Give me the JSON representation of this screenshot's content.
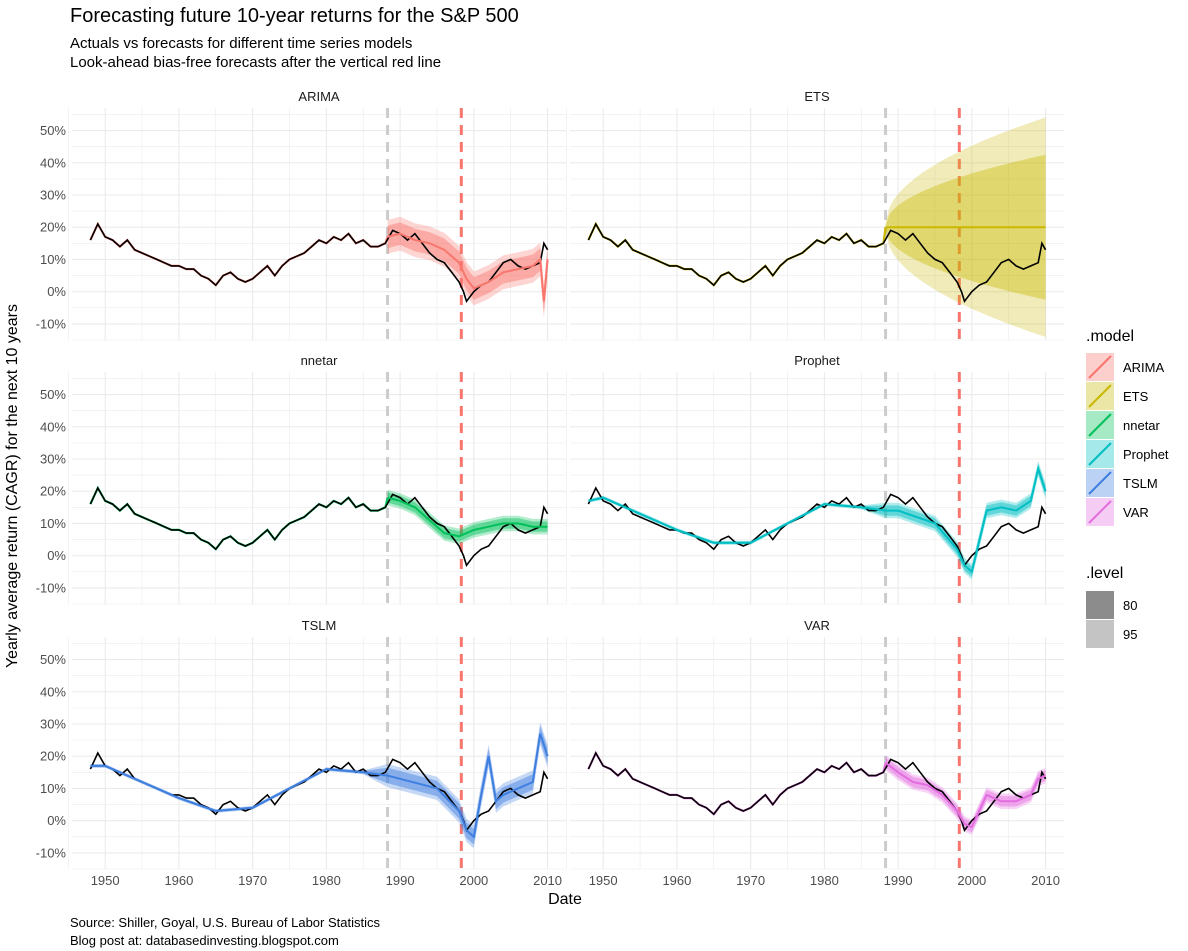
{
  "title": "Forecasting future 10-year returns for the S&P 500",
  "subtitle_lines": [
    "Actuals vs forecasts for different time series models",
    "Look-ahead bias-free forecasts after the vertical red line"
  ],
  "caption_lines": [
    "Source: Shiller, Goyal, U.S. Bureau of Labor Statistics",
    "Blog post at: databasedinvesting.blogspot.com"
  ],
  "chart_data": {
    "type": "line",
    "xlabel": "Date",
    "ylabel": "Yearly average return (CAGR) for the next 10 years",
    "xlim": [
      1945.5,
      2012.5
    ],
    "ylim": [
      -15,
      57
    ],
    "x_ticks": [
      1950,
      1960,
      1970,
      1980,
      1990,
      2000,
      2010
    ],
    "x_tick_labels": [
      "1950",
      "1960",
      "1970",
      "1980",
      "1990",
      "2000",
      "2010"
    ],
    "y_ticks": [
      -10,
      0,
      10,
      20,
      30,
      40,
      50
    ],
    "y_tick_labels": [
      "-10%",
      "0%",
      "10%",
      "20%",
      "30%",
      "40%",
      "50%"
    ],
    "grid": true,
    "vlines": [
      {
        "x": 1988.3,
        "color": "#cccccc",
        "style": "dashed"
      },
      {
        "x": 1998.3,
        "color": "#f8766d",
        "style": "dashed"
      }
    ],
    "actual": {
      "color": "#000000",
      "x": [
        1948.0,
        1949.0,
        1950.0,
        1951.0,
        1952.0,
        1953.0,
        1954.0,
        1955.0,
        1956.0,
        1957.0,
        1958.0,
        1959.0,
        1960.0,
        1961.0,
        1962.0,
        1963.0,
        1964.0,
        1965.0,
        1966.0,
        1967.0,
        1968.0,
        1969.0,
        1970.0,
        1971.0,
        1972.0,
        1973.0,
        1974.0,
        1975.0,
        1976.0,
        1977.0,
        1978.0,
        1979.0,
        1980.0,
        1981.0,
        1982.0,
        1983.0,
        1984.0,
        1985.0,
        1986.0,
        1987.0,
        1988.0,
        1989.0,
        1990.0,
        1991.0,
        1992.0,
        1993.0,
        1994.0,
        1995.0,
        1996.0,
        1997.0,
        1998.0,
        1998.6,
        1999.0,
        2000.0,
        2001.0,
        2002.0,
        2003.0,
        2004.0,
        2005.0,
        2006.0,
        2007.0,
        2008.0,
        2009.0,
        2009.5,
        2010.0
      ],
      "y": [
        16,
        21,
        17,
        16,
        14,
        16,
        13,
        12,
        11,
        10,
        9,
        8,
        8,
        7,
        7,
        5,
        4,
        2,
        5,
        6,
        4,
        3,
        4,
        6,
        8,
        5,
        8,
        10,
        11,
        12,
        14,
        16,
        15,
        17,
        16,
        18,
        15,
        16,
        14,
        14,
        15,
        19,
        18,
        16,
        18,
        15,
        12,
        10,
        9,
        6,
        3,
        0,
        -3,
        0,
        2,
        3,
        6,
        9,
        10,
        8,
        7,
        8,
        9,
        15,
        13
      ]
    },
    "series": [
      {
        "name": "ARIMA",
        "color": "#f8766d",
        "x": [
          1988.3,
          1990,
          1992,
          1994,
          1996,
          1998,
          1999,
          2000,
          2002,
          2004,
          2006,
          2008,
          2009,
          2009.5,
          2010
        ],
        "y": [
          17,
          18,
          16,
          15,
          13,
          9,
          4,
          1,
          3,
          6,
          7,
          8,
          10,
          -3,
          10
        ]
      },
      {
        "name": "ETS",
        "color": "#c9b800",
        "x": [
          1988.3,
          2010
        ],
        "y": [
          20,
          20
        ]
      },
      {
        "name": "nnetar",
        "color": "#00c05a",
        "x": [
          1988.3,
          1990,
          1992,
          1994,
          1996,
          1998,
          2000,
          2002,
          2004,
          2006,
          2008,
          2010
        ],
        "y": [
          18,
          17,
          15,
          11,
          7,
          6,
          8,
          9,
          10,
          10,
          9,
          9
        ]
      },
      {
        "name": "Prophet",
        "color": "#00bfc4",
        "x": [
          1948,
          1950,
          1955,
          1960,
          1965,
          1970,
          1975,
          1980,
          1985,
          1988.3,
          1990,
          1995,
          1998,
          1999,
          2000,
          2002,
          2004,
          2006,
          2008,
          2009,
          2010
        ],
        "y": [
          17,
          18,
          13,
          8,
          4,
          4,
          10,
          16,
          15,
          14,
          14,
          10,
          2,
          -3,
          -5,
          14,
          15,
          14,
          17,
          27,
          20
        ]
      },
      {
        "name": "TSLM",
        "color": "#3f7fe0",
        "x": [
          1948,
          1950,
          1955,
          1960,
          1965,
          1970,
          1975,
          1980,
          1985,
          1988.3,
          1990,
          1995,
          1998,
          1999,
          2000,
          2001,
          2002,
          2003,
          2004,
          2006,
          2008,
          2009,
          2010
        ],
        "y": [
          17,
          17,
          12,
          7,
          3,
          4,
          10,
          16,
          15,
          14,
          13,
          10,
          3,
          -3,
          -5,
          8,
          20,
          6,
          8,
          10,
          12,
          27,
          20
        ]
      },
      {
        "name": "VAR",
        "color": "#e36de0",
        "x": [
          1988.3,
          1990,
          1992,
          1994,
          1996,
          1998,
          1999,
          2000,
          2001,
          2002,
          2004,
          2006,
          2008,
          2009,
          2010
        ],
        "y": [
          18,
          15,
          12,
          11,
          8,
          3,
          -1,
          -2,
          3,
          8,
          6,
          6,
          8,
          13,
          14
        ]
      }
    ],
    "legend": {
      "model_title": ".model",
      "model_entries": [
        "ARIMA",
        "ETS",
        "nnetar",
        "Prophet",
        "TSLM",
        "VAR"
      ],
      "level_title": ".level",
      "level_entries": [
        "80",
        "95"
      ],
      "placement": "right"
    }
  }
}
